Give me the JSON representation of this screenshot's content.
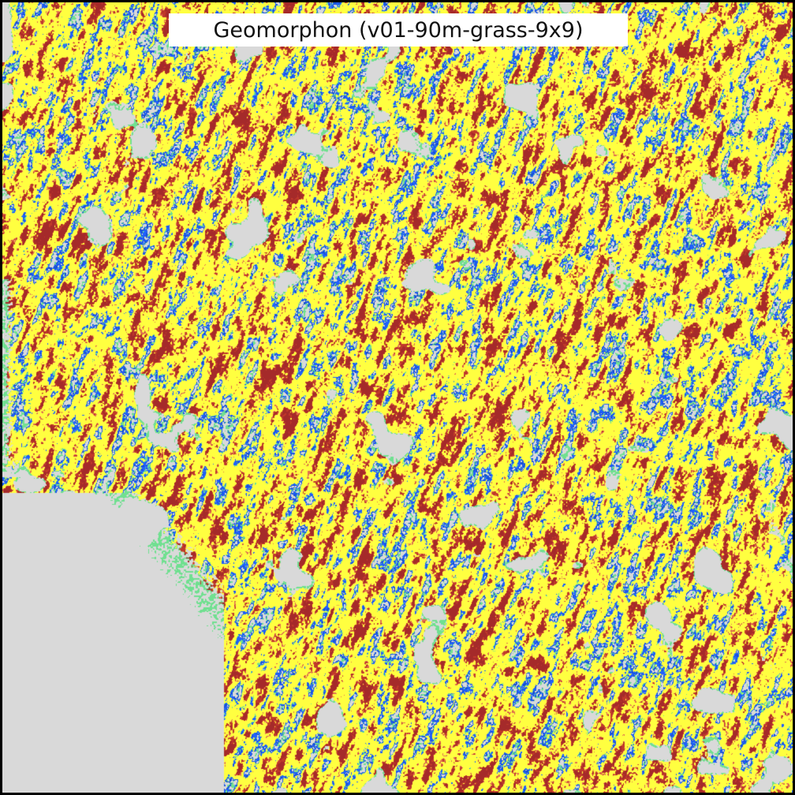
{
  "title": "Geomorphon (v01-90m-grass-9x9)",
  "map": {
    "background_color": "#d9d9d9",
    "landform_colors": {
      "flat": "#d9d9d9",
      "peak": "#a52a2a",
      "ridge": "#c0392b",
      "shoulder": "#e07050",
      "spur": "#f5a050",
      "slope": "#ffff40",
      "hollow": "#2060ff",
      "footslope": "#70e090",
      "valley": "#1850d0",
      "pit": "#000000"
    }
  }
}
